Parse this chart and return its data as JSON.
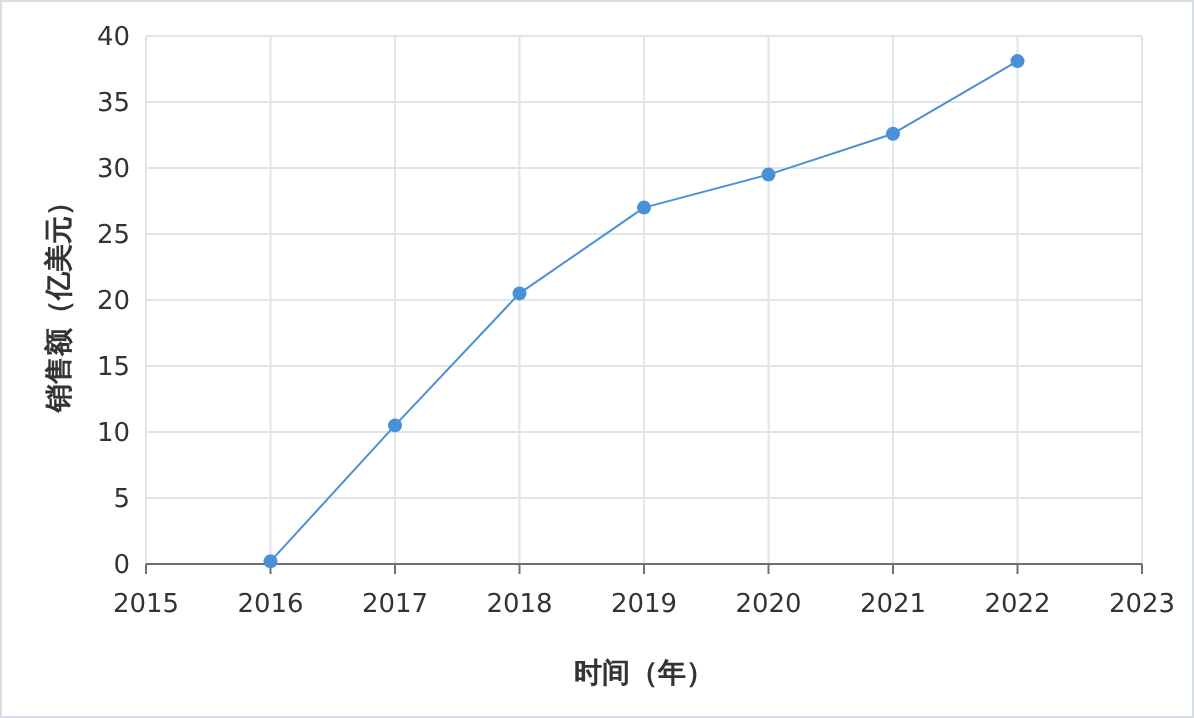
{
  "chart_data": {
    "type": "line",
    "xlabel": "时间（年）",
    "ylabel": "销售额（亿美元）",
    "x": [
      2016,
      2017,
      2018,
      2019,
      2020,
      2021,
      2022
    ],
    "series": [
      {
        "color": "#4a90d9",
        "values": [
          0.2,
          10.5,
          20.5,
          27,
          29.5,
          32.6,
          38.1
        ]
      }
    ],
    "xlim": [
      2015,
      2023
    ],
    "xticks": [
      2015,
      2016,
      2017,
      2018,
      2019,
      2020,
      2021,
      2022,
      2023
    ],
    "ylim": [
      0,
      40
    ],
    "yticks": [
      0,
      5,
      10,
      15,
      20,
      25,
      30,
      35,
      40
    ],
    "grid": true,
    "marker": "circle",
    "line_style": "solid"
  }
}
